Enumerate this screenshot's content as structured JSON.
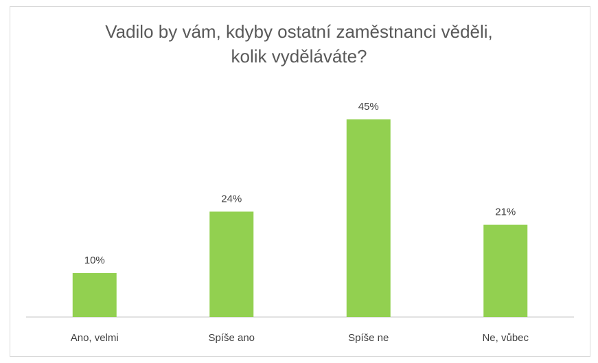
{
  "chart_data": {
    "type": "bar",
    "title": [
      "Vadilo by vám, kdyby ostatní zaměstnanci věděli,",
      "kolik vyděláváte?"
    ],
    "categories": [
      "Ano, velmi",
      "Spíše ano",
      "Spíše ne",
      "Ne, vůbec"
    ],
    "values": [
      10,
      24,
      45,
      21
    ],
    "data_labels": [
      "10%",
      "24%",
      "45%",
      "21%"
    ],
    "ylim": [
      0,
      55
    ],
    "grid": false,
    "bar_color": "#92d050",
    "axis_color": "#d9d9d9"
  }
}
